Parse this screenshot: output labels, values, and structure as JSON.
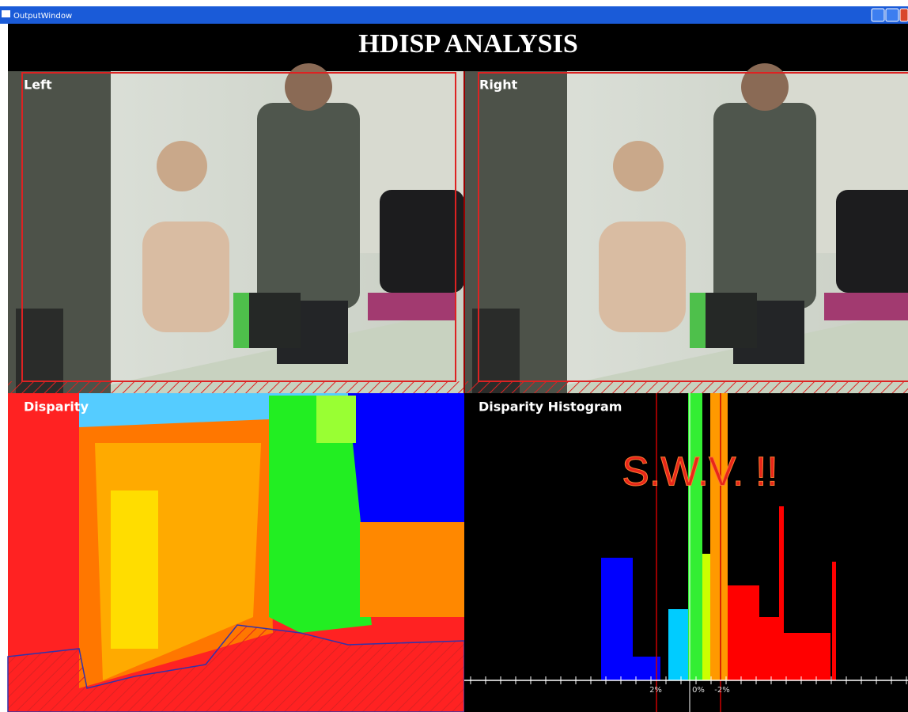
{
  "window": {
    "title": "OutputWindow"
  },
  "header": {
    "title": "HDISP ANALYSIS"
  },
  "panels": {
    "left": {
      "label": "Left"
    },
    "right": {
      "label": "Right"
    },
    "disparity": {
      "label": "Disparity"
    },
    "histogram": {
      "label": "Disparity Histogram",
      "warning": "S.W.V.  !!",
      "axis_labels": [
        "2%",
        "0%",
        "-2%"
      ]
    }
  }
}
